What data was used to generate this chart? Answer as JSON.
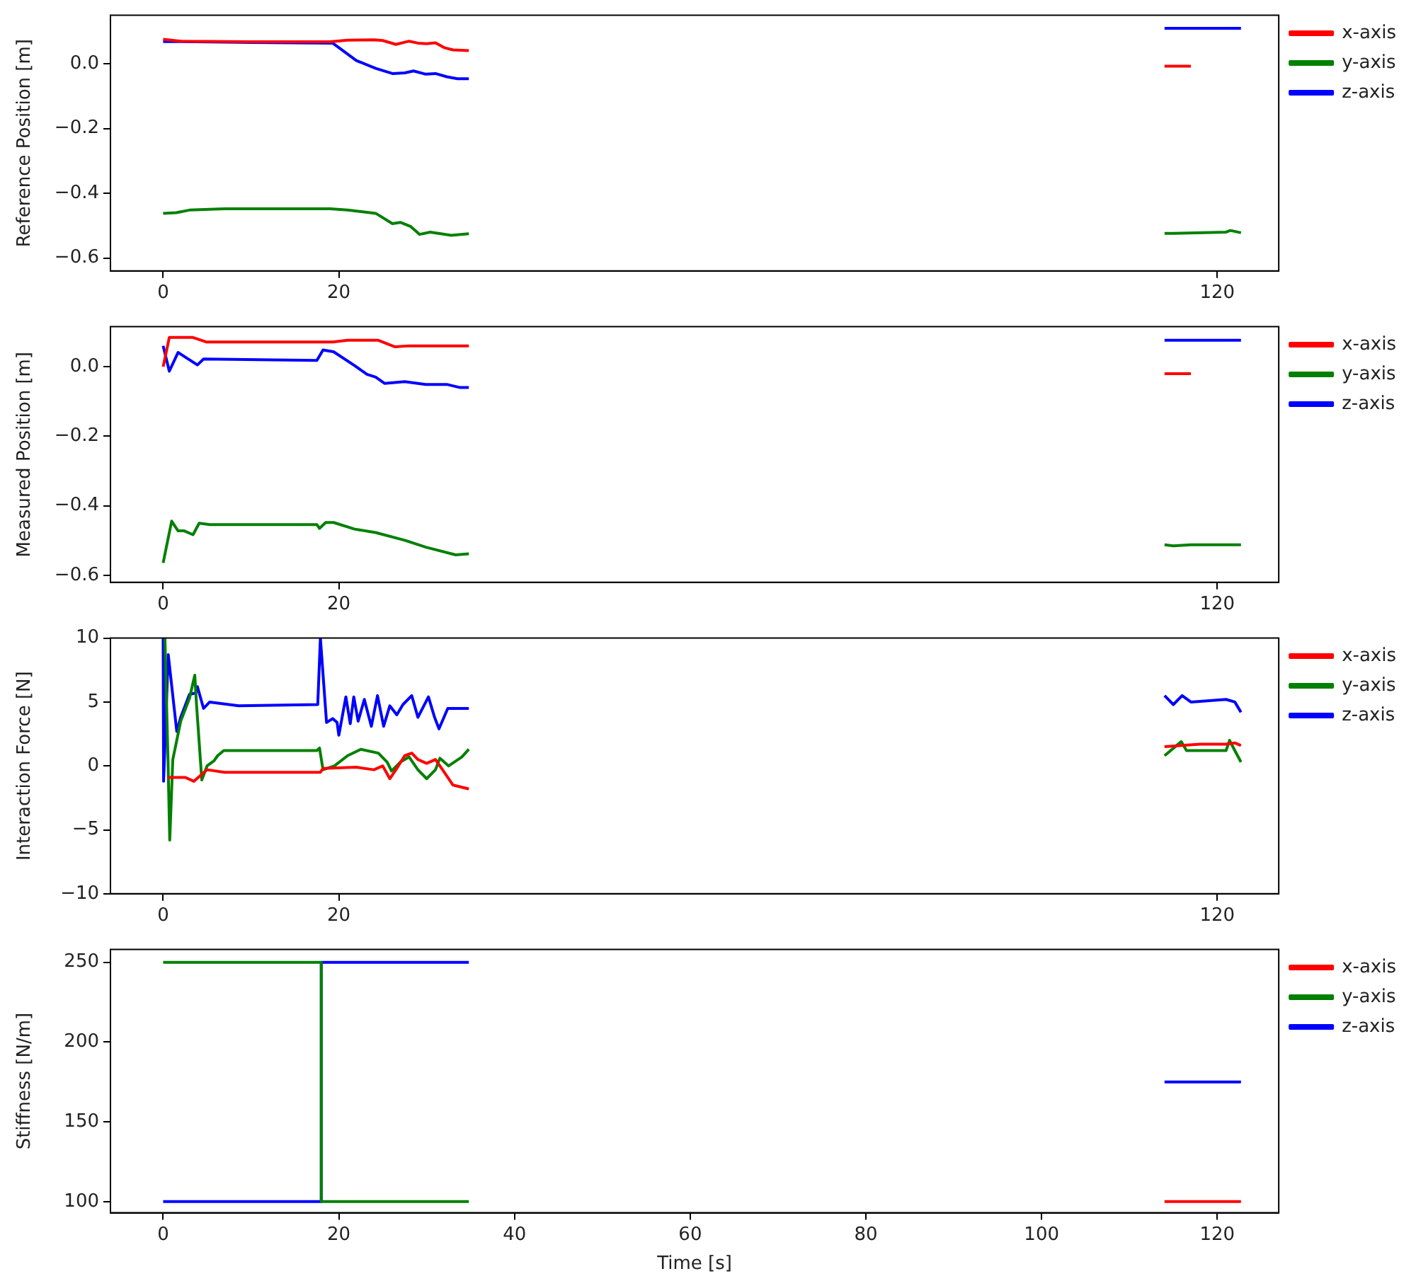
{
  "chart_data": [
    {
      "type": "line",
      "ylabel": "Reference Position [m]",
      "xlim": [
        -6,
        127
      ],
      "xticks": [
        0,
        20,
        120
      ],
      "ylim": [
        -0.64,
        0.15
      ],
      "yticks": [
        {
          "value": -0.6,
          "label": "−0.6"
        },
        {
          "value": -0.4,
          "label": "−0.4"
        },
        {
          "value": -0.2,
          "label": "−0.2"
        },
        {
          "value": 0,
          "label": "0.0"
        }
      ],
      "legend": "right",
      "series": [
        {
          "name": "x-axis",
          "color": "#ff0000",
          "x": [
            0,
            2,
            10,
            19,
            21,
            24,
            25,
            26.5,
            28,
            29,
            30,
            31,
            32,
            33,
            34.8,
            74,
            114,
            117
          ],
          "values": [
            0.076,
            0.07,
            0.068,
            0.068,
            0.073,
            0.074,
            0.072,
            0.06,
            0.07,
            0.064,
            0.062,
            0.065,
            0.05,
            0.043,
            0.041,
            null,
            -0.007,
            -0.007
          ]
        },
        {
          "name": "y-axis",
          "color": "#008000",
          "x": [
            0,
            1.5,
            3,
            7,
            19,
            21,
            24.2,
            26.1,
            27,
            28.2,
            29.2,
            30.4,
            32.8,
            34.8,
            74,
            114,
            115,
            121,
            121.5,
            122.7
          ],
          "values": [
            -0.462,
            -0.46,
            -0.452,
            -0.448,
            -0.448,
            -0.452,
            -0.462,
            -0.494,
            -0.49,
            -0.503,
            -0.527,
            -0.52,
            -0.53,
            -0.525,
            null,
            -0.524,
            -0.524,
            -0.52,
            -0.515,
            -0.522
          ]
        },
        {
          "name": "z-axis",
          "color": "#0000ff",
          "x": [
            0,
            2,
            10,
            19.3,
            20.5,
            22,
            24.2,
            26.1,
            27.5,
            28.5,
            29.9,
            31,
            32.3,
            33.5,
            34.8,
            74,
            114,
            122.7
          ],
          "values": [
            0.069,
            0.069,
            0.066,
            0.064,
            0.04,
            0.01,
            -0.014,
            -0.03,
            -0.028,
            -0.022,
            -0.032,
            -0.03,
            -0.04,
            -0.046,
            -0.046,
            null,
            0.11,
            0.11
          ]
        }
      ]
    },
    {
      "type": "line",
      "ylabel": "Measured Position [m]",
      "xlim": [
        -6,
        127
      ],
      "xticks": [
        0,
        20,
        120
      ],
      "ylim": [
        -0.62,
        0.115
      ],
      "yticks": [
        {
          "value": -0.6,
          "label": "−0.6"
        },
        {
          "value": -0.4,
          "label": "−0.4"
        },
        {
          "value": -0.2,
          "label": "−0.2"
        },
        {
          "value": 0,
          "label": "0.0"
        }
      ],
      "legend": "right",
      "series": [
        {
          "name": "x-axis",
          "color": "#ff0000",
          "x": [
            0,
            0.7,
            3.4,
            4.9,
            19.3,
            21,
            24.5,
            26.4,
            28,
            34.8,
            74,
            114,
            117
          ],
          "values": [
            0,
            0.084,
            0.084,
            0.071,
            0.071,
            0.076,
            0.076,
            0.057,
            0.06,
            0.06,
            null,
            -0.02,
            -0.02
          ]
        },
        {
          "name": "y-axis",
          "color": "#008000",
          "x": [
            0,
            0.97,
            1.7,
            2.4,
            3.4,
            4.1,
            5.3,
            17.5,
            17.8,
            18.5,
            19.4,
            21.8,
            24.2,
            27.5,
            29.9,
            33.3,
            34.8,
            74,
            114,
            115,
            117,
            122.7
          ],
          "values": [
            -0.564,
            -0.444,
            -0.472,
            -0.472,
            -0.483,
            -0.45,
            -0.454,
            -0.454,
            -0.465,
            -0.448,
            -0.448,
            -0.467,
            -0.477,
            -0.499,
            -0.519,
            -0.541,
            -0.538,
            null,
            -0.512,
            -0.515,
            -0.512,
            -0.512
          ]
        },
        {
          "name": "z-axis",
          "color": "#0000ff",
          "x": [
            0,
            0.7,
            1.7,
            3.9,
            4.6,
            17.5,
            18.2,
            19.4,
            21.8,
            23.2,
            24.2,
            25.2,
            27.5,
            29.9,
            32.3,
            33.8,
            34.8,
            74,
            114,
            122.7
          ],
          "values": [
            0.06,
            -0.013,
            0.041,
            0.005,
            0.022,
            0.018,
            0.048,
            0.043,
            0.003,
            -0.022,
            -0.03,
            -0.048,
            -0.043,
            -0.051,
            -0.051,
            -0.06,
            -0.06,
            null,
            0.076,
            0.076
          ]
        }
      ]
    },
    {
      "type": "line",
      "ylabel": "Interaction Force [N]",
      "xlim": [
        -6,
        127
      ],
      "xticks": [
        0,
        20,
        120
      ],
      "ylim": [
        -10,
        10
      ],
      "yticks": [
        {
          "value": -10,
          "label": "−10"
        },
        {
          "value": -5,
          "label": "−5"
        },
        0,
        5,
        10
      ],
      "legend": "right",
      "series": [
        {
          "name": "x-axis",
          "color": "#ff0000",
          "x": [
            0.5,
            2.5,
            3.5,
            4.5,
            5,
            7,
            17.9,
            18.2,
            22,
            24,
            25,
            25.8,
            26.5,
            27.5,
            28.3,
            29,
            30,
            31,
            32,
            33,
            34.8,
            74,
            114,
            116,
            118,
            121,
            122,
            122.7
          ],
          "values": [
            -0.9,
            -0.9,
            -1.2,
            -0.6,
            -0.3,
            -0.5,
            -0.5,
            -0.2,
            -0.1,
            -0.3,
            0,
            -1,
            -0.3,
            0.8,
            1,
            0.5,
            0.2,
            0.5,
            -0.5,
            -1.5,
            -1.8,
            null,
            1.5,
            1.6,
            1.7,
            1.7,
            1.8,
            1.6
          ]
        },
        {
          "name": "y-axis",
          "color": "#008000",
          "x": [
            0.2,
            0.55,
            0.75,
            1.1,
            2,
            3,
            3.6,
            3.8,
            4.4,
            5,
            5.8,
            6.2,
            6.9,
            17.5,
            17.8,
            18.2,
            19.5,
            21,
            22.5,
            24.5,
            25.5,
            26,
            27,
            28,
            29,
            30,
            31,
            31.5,
            32.5,
            34,
            34.8,
            74,
            114,
            115.9,
            116.5,
            121,
            121.4,
            122,
            122.7
          ],
          "values": [
            10,
            0.5,
            -5.8,
            0.5,
            3.5,
            5.3,
            7.1,
            4.8,
            -1.1,
            0,
            0.4,
            0.8,
            1.2,
            1.2,
            1.4,
            -0.3,
            0,
            0.8,
            1.3,
            1,
            0.3,
            -0.4,
            0.3,
            0.7,
            -0.3,
            -1,
            -0.3,
            0.6,
            0,
            0.7,
            1.3,
            null,
            0.8,
            1.9,
            1.2,
            1.2,
            2,
            1.2,
            0.3
          ]
        },
        {
          "name": "z-axis",
          "color": "#0000ff",
          "x": [
            0,
            0.05,
            0.58,
            1.55,
            2,
            3,
            3.7,
            3.9,
            4.6,
            5.3,
            8.6,
            17.6,
            17.9,
            18.6,
            19.3,
            19.8,
            20,
            20.8,
            21.3,
            21.7,
            22.2,
            22.9,
            23.7,
            24.4,
            25.1,
            25.8,
            26.6,
            27.3,
            28.3,
            29,
            30.2,
            30.9,
            31.4,
            32.4,
            34.8,
            74,
            114,
            115,
            116,
            117,
            121,
            122,
            122.7
          ],
          "values": [
            10,
            -1.2,
            8.7,
            2.7,
            3.8,
            5.6,
            5.7,
            6.2,
            4.5,
            5,
            4.7,
            4.8,
            10,
            3.4,
            3.7,
            3.4,
            2.4,
            5.4,
            3.3,
            5.4,
            3.5,
            5.2,
            3.1,
            5.5,
            3.1,
            4.7,
            4,
            4.8,
            5.5,
            3.8,
            5.4,
            3.8,
            2.9,
            4.5,
            4.5,
            null,
            5.5,
            4.8,
            5.5,
            5,
            5.2,
            5,
            4.2
          ]
        }
      ]
    },
    {
      "type": "line",
      "xlabel": "Time [s]",
      "ylabel": "Stiffness [N/m]",
      "xlim": [
        -6,
        127
      ],
      "xticks": [
        0,
        20,
        40,
        60,
        80,
        100,
        120
      ],
      "ylim": [
        93,
        258
      ],
      "yticks": [
        100,
        150,
        200,
        250
      ],
      "legend": "right",
      "series": [
        {
          "name": "x-axis",
          "color": "#ff0000",
          "x": [
            114,
            122.7
          ],
          "values": [
            100,
            100
          ]
        },
        {
          "name": "y-axis",
          "color": "#008000",
          "x": [
            0,
            18,
            18,
            34.8
          ],
          "values": [
            250,
            250,
            100,
            100
          ]
        },
        {
          "name": "z-axis",
          "color": "#0000ff",
          "x": [
            0,
            18,
            18,
            34.8,
            74,
            114,
            122.7
          ],
          "values": [
            100,
            100,
            250,
            250,
            null,
            175,
            175
          ]
        }
      ]
    }
  ]
}
